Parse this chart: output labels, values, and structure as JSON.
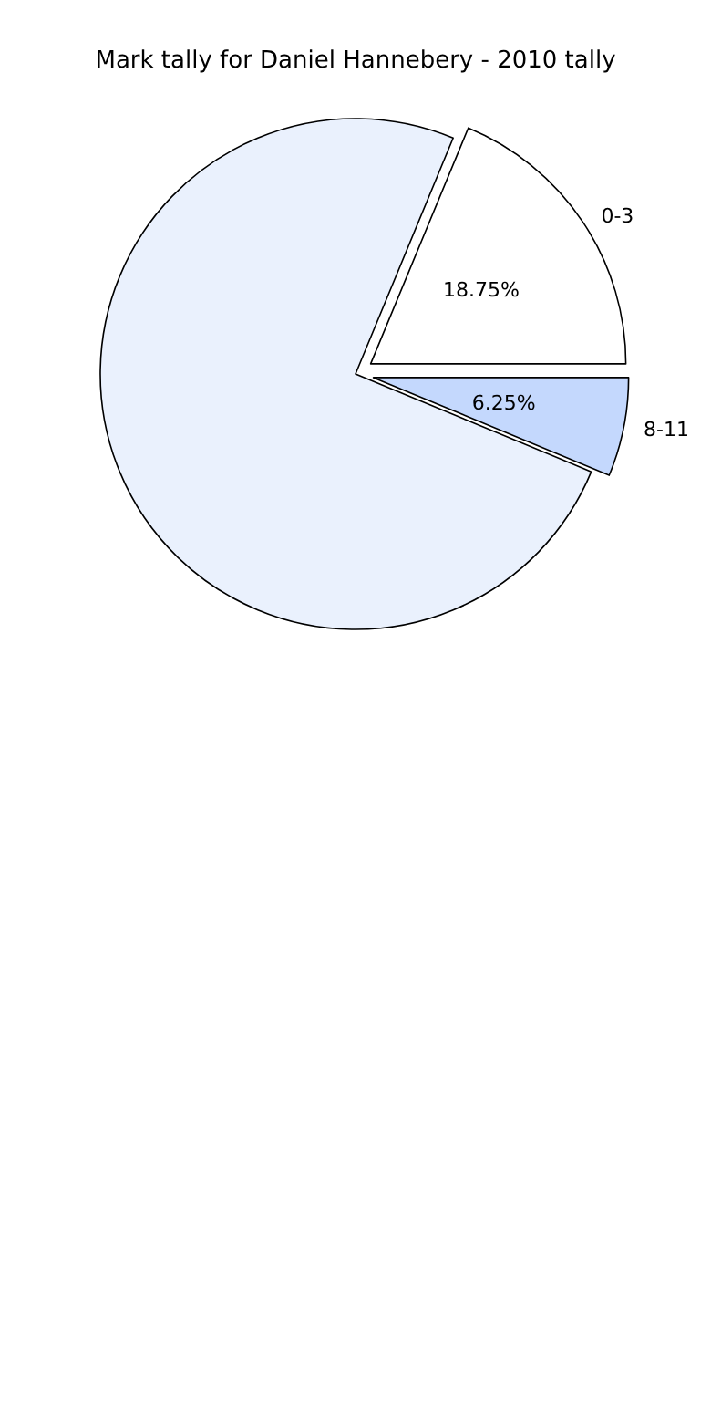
{
  "chart_data": {
    "type": "pie",
    "title": "Mark tally for Daniel Hannebery - 2010 tally",
    "categories": [
      "0-3",
      "8-11",
      null
    ],
    "values": [
      18.75,
      6.25,
      75
    ],
    "value_labels": [
      "18.75%",
      "6.25%",
      null
    ],
    "colors": [
      "#ffffff",
      "#c4d8fd",
      "#eaf1fd"
    ],
    "legend": false
  }
}
